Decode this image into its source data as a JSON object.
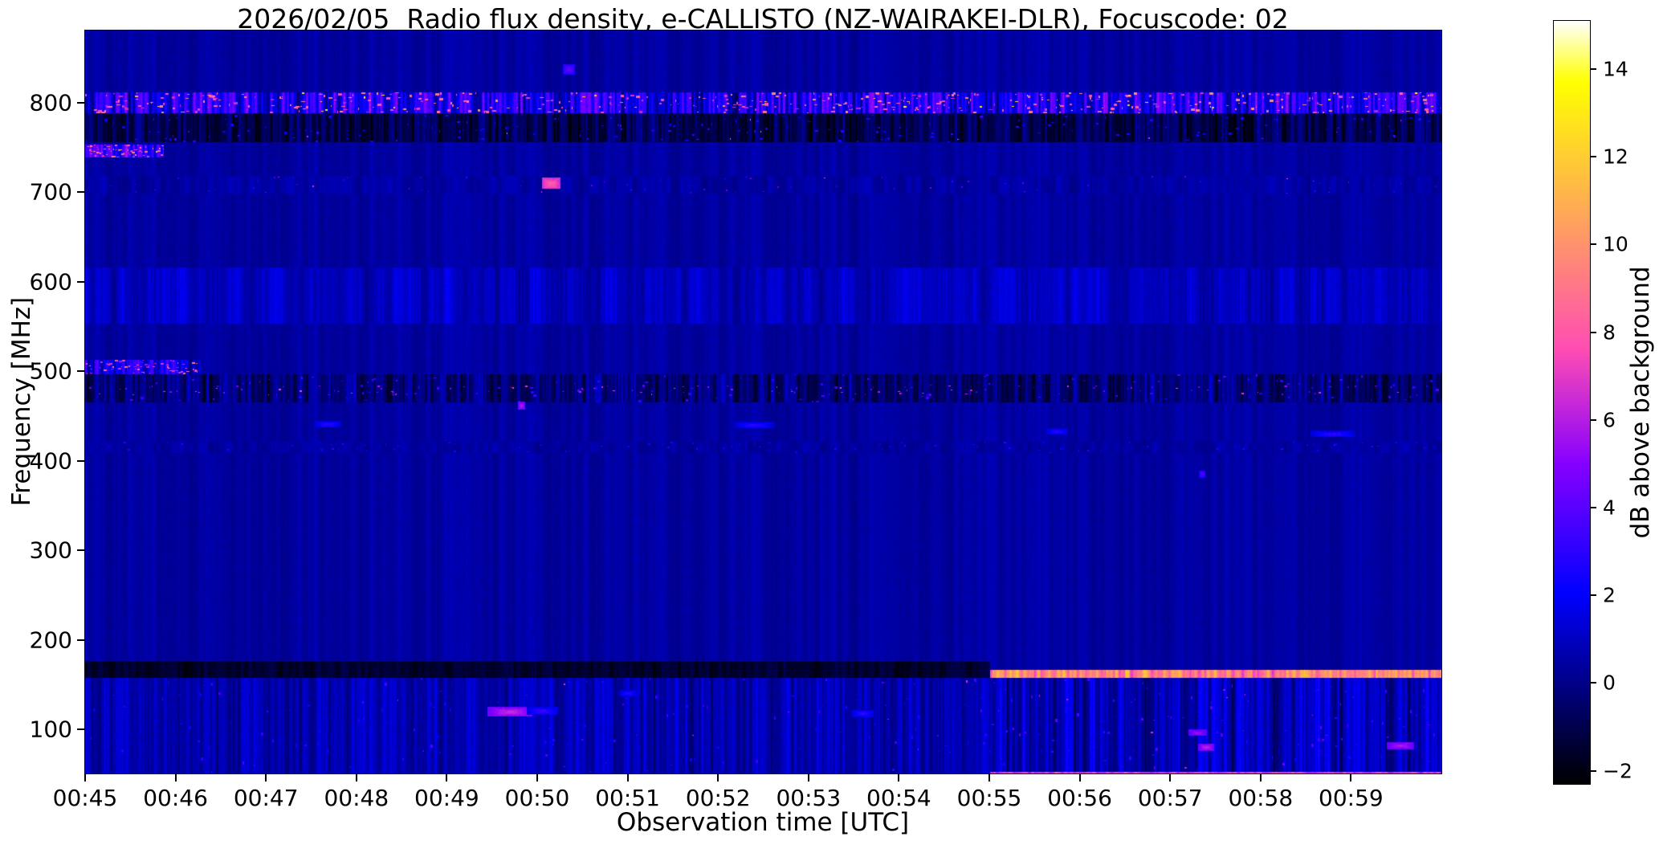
{
  "chart_data": {
    "type": "heatmap",
    "subtype": "radio-spectrogram",
    "title": "2026/02/05  Radio flux density, e-CALLISTO (NZ-WAIRAKEI-DLR), Focuscode: 02",
    "xlabel": "Observation time [UTC]",
    "ylabel": "Frequency [MHz]",
    "x_start": "00:45",
    "x_end": "01:00",
    "x_total_min": 15,
    "x_ticks": [
      {
        "label": "00:45",
        "min": 0
      },
      {
        "label": "00:46",
        "min": 1
      },
      {
        "label": "00:47",
        "min": 2
      },
      {
        "label": "00:48",
        "min": 3
      },
      {
        "label": "00:49",
        "min": 4
      },
      {
        "label": "00:50",
        "min": 5
      },
      {
        "label": "00:51",
        "min": 6
      },
      {
        "label": "00:52",
        "min": 7
      },
      {
        "label": "00:53",
        "min": 8
      },
      {
        "label": "00:54",
        "min": 9
      },
      {
        "label": "00:55",
        "min": 10
      },
      {
        "label": "00:56",
        "min": 11
      },
      {
        "label": "00:57",
        "min": 12
      },
      {
        "label": "00:58",
        "min": 13
      },
      {
        "label": "00:59",
        "min": 14
      }
    ],
    "y_range_mhz": [
      50.6,
      880.8
    ],
    "y_ticks": [
      800,
      700,
      600,
      500,
      400,
      300,
      200,
      100
    ],
    "grid": false,
    "legend": "none",
    "background_db": 0.45,
    "colorbar": {
      "label": "dB above background",
      "range": [
        -2.3,
        15.1
      ],
      "ticks": [
        {
          "label": "14",
          "v": 14
        },
        {
          "label": "12",
          "v": 12
        },
        {
          "label": "10",
          "v": 10
        },
        {
          "label": "8",
          "v": 8
        },
        {
          "label": "6",
          "v": 6
        },
        {
          "label": "4",
          "v": 4
        },
        {
          "label": "2",
          "v": 2
        },
        {
          "label": "0",
          "v": 0
        },
        {
          "label": "−2",
          "v": -2
        }
      ],
      "colormap": "gnuplot2",
      "stops": [
        {
          "t": 0.0,
          "c": [
            0,
            0,
            0
          ]
        },
        {
          "t": 0.125,
          "c": [
            0,
            0,
            128
          ]
        },
        {
          "t": 0.25,
          "c": [
            0,
            0,
            255
          ]
        },
        {
          "t": 0.42,
          "c": [
            135,
            0,
            255
          ]
        },
        {
          "t": 0.57,
          "c": [
            255,
            77,
            179
          ]
        },
        {
          "t": 0.7,
          "c": [
            255,
            143,
            112
          ]
        },
        {
          "t": 0.8,
          "c": [
            255,
            194,
            61
          ]
        },
        {
          "t": 0.92,
          "c": [
            255,
            255,
            0
          ]
        },
        {
          "t": 1.0,
          "c": [
            255,
            255,
            255
          ]
        }
      ]
    },
    "bands": [
      {
        "name": "quiet-background",
        "f": [
          880.8,
          50.6
        ],
        "base": 0.45,
        "amp": 0.4,
        "ns": 7,
        "jit": 0.22
      },
      {
        "name": "striped-band-555-616",
        "f": [
          616,
          553
        ],
        "base": 1.0,
        "amp": 0.9,
        "ns": 9,
        "jit": 0.3
      },
      {
        "name": "speckle-row-415",
        "f": [
          421,
          409
        ],
        "base": 0.45,
        "amp": 0.45,
        "ns": 6,
        "jit": 0.25,
        "speckles": [
          {
            "p": 0.06,
            "v": [
              2.0,
              3.2
            ],
            "w": 3,
            "h": 2
          }
        ]
      },
      {
        "name": "dark-rfi-band-480",
        "f": [
          497,
          465
        ],
        "base": -0.3,
        "amp": 1.5,
        "ns": 4,
        "jit": 0.4,
        "speckles": [
          {
            "p": 0.1,
            "v": [
              2.5,
              4.0
            ],
            "w": 4,
            "h": 3
          },
          {
            "p": 0.05,
            "v": [
              4.5,
              7.5
            ],
            "w": 3,
            "h": 2,
            "f": [
              484,
              473
            ]
          }
        ]
      },
      {
        "name": "dark-rfi-band-770",
        "f": [
          788,
          756
        ],
        "base": -0.9,
        "amp": 1.4,
        "ns": 4,
        "jit": 0.4,
        "speckles": [
          {
            "p": 0.1,
            "v": [
              2.0,
              3.5
            ],
            "w": 4,
            "h": 3
          },
          {
            "p": 0.008,
            "v": [
              6.0,
              9.0
            ],
            "w": 2,
            "h": 2
          }
        ]
      },
      {
        "name": "bright-rfi-band-800",
        "f": [
          812,
          788
        ],
        "base": 2.5,
        "amp": 3.0,
        "ns": 3,
        "jit": 0.5,
        "speckles": [
          {
            "p": 0.25,
            "v": [
              6.0,
              10.0
            ],
            "w": 5,
            "h": 3
          },
          {
            "p": 0.02,
            "v": [
              11.0,
              13.5
            ],
            "w": 4,
            "h": 2
          }
        ]
      },
      {
        "name": "speckle-lane-705",
        "f": [
          718,
          699
        ],
        "base": 0.5,
        "amp": 0.5,
        "ns": 6,
        "jit": 0.25,
        "speckles": [
          {
            "p": 0.04,
            "v": [
              2.5,
              4.5
            ],
            "w": 2,
            "h": 2
          },
          {
            "p": 0.004,
            "v": [
              6.0,
              8.0
            ],
            "w": 2,
            "h": 2
          }
        ]
      },
      {
        "name": "pink-streak-745-start",
        "f": [
          753,
          739
        ],
        "t": [
          0,
          0.058
        ],
        "base": 3.0,
        "amp": 3.0,
        "ns": 3,
        "jit": 0.5,
        "speckles": [
          {
            "p": 0.6,
            "v": [
              6.5,
              10.5
            ],
            "w": 4,
            "h": 2
          }
        ]
      },
      {
        "name": "pink-streak-505-start",
        "f": [
          513,
          497
        ],
        "t": [
          0,
          0.085
        ],
        "base": 2.0,
        "amp": 2.5,
        "ns": 3,
        "jit": 0.5,
        "speckles": [
          {
            "p": 0.5,
            "v": [
              5.5,
              9.0
            ],
            "w": 4,
            "h": 2
          }
        ]
      },
      {
        "name": "low-band-before-0055",
        "f": [
          157,
          50.6
        ],
        "t": [
          0,
          0.667
        ],
        "base": 0.7,
        "amp": 1.1,
        "ns": 4,
        "jit": 0.35,
        "speckles": [
          {
            "p": 0.12,
            "v": [
              2.2,
              3.8
            ],
            "w": 3,
            "h": 4
          },
          {
            "p": 0.006,
            "v": [
              5.0,
              7.0
            ],
            "w": 3,
            "h": 3
          }
        ]
      },
      {
        "name": "low-band-after-0055",
        "f": [
          157,
          50.6
        ],
        "t": [
          0.667,
          1
        ],
        "base": 0.8,
        "amp": 1.6,
        "ns": 4,
        "jit": 0.4,
        "speckles": [
          {
            "p": 0.18,
            "v": [
              2.5,
              4.2
            ],
            "w": 3,
            "h": 4
          },
          {
            "p": 0.02,
            "v": [
              5.0,
              7.5
            ],
            "w": 3,
            "h": 3
          }
        ]
      },
      {
        "name": "black-band-165-before-0055",
        "f": [
          176,
          157
        ],
        "t": [
          0,
          0.667
        ],
        "base": -1.5,
        "amp": 0.6,
        "ns": 5,
        "jit": 0.3
      },
      {
        "name": "bright-line-162-after-0055",
        "f": [
          166,
          157
        ],
        "t": [
          0.667,
          1
        ],
        "base": 9.5,
        "amp": 2.5,
        "ns": 3,
        "jit": 0.5
      },
      {
        "name": "red-bottom-edge-after-0055",
        "f": [
          52.8,
          50.6
        ],
        "t": [
          0.667,
          1
        ],
        "base": 6.8,
        "amp": 1.2,
        "ns": 4,
        "jit": 0.3
      }
    ],
    "events": [
      {
        "name": "blue-spot-838mhz",
        "t": 5.35,
        "f": 838,
        "w": 0.13,
        "h": 12,
        "v": 4.6
      },
      {
        "name": "pink-burst-710mhz",
        "t": 5.15,
        "f": 710,
        "w": 0.2,
        "h": 13,
        "v": 8.5
      },
      {
        "name": "bright-dot-462mhz",
        "t": 4.82,
        "f": 462,
        "w": 0.08,
        "h": 9,
        "v": 6.2
      },
      {
        "name": "blue-dash-441mhz",
        "t": 2.68,
        "f": 441,
        "w": 0.3,
        "h": 7,
        "v": 3.3
      },
      {
        "name": "blue-dash-440mhz",
        "t": 7.4,
        "f": 440,
        "w": 0.45,
        "h": 7,
        "v": 3.3
      },
      {
        "name": "blue-dash-433mhz",
        "t": 10.75,
        "f": 433,
        "w": 0.25,
        "h": 7,
        "v": 3.2
      },
      {
        "name": "blue-dash-430mhz",
        "t": 13.8,
        "f": 430,
        "w": 0.5,
        "h": 7,
        "v": 3.4
      },
      {
        "name": "blue-dot-385mhz",
        "t": 12.35,
        "f": 385,
        "w": 0.07,
        "h": 8,
        "v": 4.3
      },
      {
        "name": "pink-blob-120mhz",
        "t": 4.7,
        "f": 120,
        "w": 0.5,
        "h": 11,
        "v": 6.6
      },
      {
        "name": "blue-blob-121mhz",
        "t": 5.05,
        "f": 121,
        "w": 0.35,
        "h": 9,
        "v": 3.6
      },
      {
        "name": "blue-dash-118mhz",
        "t": 8.6,
        "f": 118,
        "w": 0.25,
        "h": 8,
        "v": 3.4
      },
      {
        "name": "blue-dash-140mhz",
        "t": 6.0,
        "f": 140,
        "w": 0.2,
        "h": 7,
        "v": 3.2
      },
      {
        "name": "pink-dot-96mhz",
        "t": 12.3,
        "f": 96,
        "w": 0.2,
        "h": 7,
        "v": 5.8
      },
      {
        "name": "pink-dot-80mhz",
        "t": 12.4,
        "f": 80,
        "w": 0.18,
        "h": 8,
        "v": 6.4
      },
      {
        "name": "pink-dot-82mhz",
        "t": 14.55,
        "f": 82,
        "w": 0.3,
        "h": 8,
        "v": 6.2
      }
    ]
  }
}
